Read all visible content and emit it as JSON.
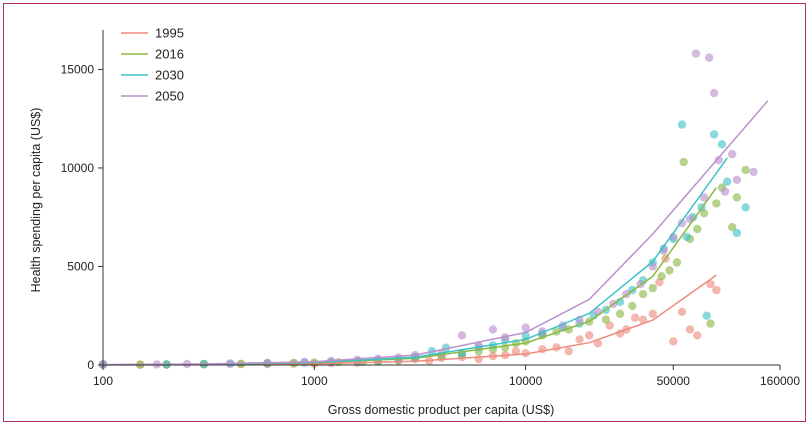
{
  "chart_data": {
    "type": "scatter",
    "title": "",
    "xlabel": "Gross domestic product per capita (US$)",
    "ylabel": "Health spending per capita (US$)",
    "x_scale": "log",
    "xlim": [
      100,
      160000
    ],
    "ylim": [
      0,
      17000
    ],
    "x_ticks": [
      {
        "value": 100,
        "label": "100"
      },
      {
        "value": 1000,
        "label": "1000"
      },
      {
        "value": 10000,
        "label": "10000"
      },
      {
        "value": 50000,
        "label": "50000"
      },
      {
        "value": 160000,
        "label": "160000"
      }
    ],
    "y_ticks": [
      {
        "value": 0,
        "label": "0"
      },
      {
        "value": 5000,
        "label": "5000"
      },
      {
        "value": 10000,
        "label": "10000"
      },
      {
        "value": 15000,
        "label": "15000"
      }
    ],
    "grid": false,
    "legend_position": "top-left",
    "series": [
      {
        "name": "1995",
        "color": "#ee8a7e",
        "line": [
          [
            100,
            5
          ],
          [
            300,
            20
          ],
          [
            1000,
            60
          ],
          [
            3000,
            190
          ],
          [
            10000,
            560
          ],
          [
            20000,
            1130
          ],
          [
            40000,
            2280
          ],
          [
            80000,
            4560
          ]
        ],
        "points": [
          [
            100,
            20
          ],
          [
            150,
            10
          ],
          [
            200,
            15
          ],
          [
            300,
            30
          ],
          [
            450,
            40
          ],
          [
            600,
            50
          ],
          [
            800,
            70
          ],
          [
            1000,
            60
          ],
          [
            1200,
            90
          ],
          [
            1600,
            110
          ],
          [
            2000,
            170
          ],
          [
            2500,
            230
          ],
          [
            3000,
            300
          ],
          [
            3500,
            220
          ],
          [
            4000,
            360
          ],
          [
            5000,
            400
          ],
          [
            6000,
            300
          ],
          [
            7000,
            450
          ],
          [
            8000,
            500
          ],
          [
            9000,
            700
          ],
          [
            10000,
            600
          ],
          [
            12000,
            800
          ],
          [
            14000,
            900
          ],
          [
            16000,
            700
          ],
          [
            18000,
            1300
          ],
          [
            20000,
            1500
          ],
          [
            22000,
            1100
          ],
          [
            25000,
            2000
          ],
          [
            28000,
            1600
          ],
          [
            30000,
            1800
          ],
          [
            33000,
            2400
          ],
          [
            36000,
            2300
          ],
          [
            40000,
            2600
          ],
          [
            43000,
            4200
          ],
          [
            46000,
            5400
          ],
          [
            50000,
            1200
          ],
          [
            55000,
            2700
          ],
          [
            60000,
            1800
          ],
          [
            65000,
            1500
          ],
          [
            75000,
            4100
          ],
          [
            80000,
            3800
          ]
        ]
      },
      {
        "name": "2016",
        "color": "#8ab843",
        "line": [
          [
            100,
            10
          ],
          [
            300,
            35
          ],
          [
            1000,
            110
          ],
          [
            3000,
            340
          ],
          [
            10000,
            1110
          ],
          [
            20000,
            2220
          ],
          [
            40000,
            4500
          ],
          [
            80000,
            9000
          ]
        ],
        "points": [
          [
            100,
            30
          ],
          [
            150,
            20
          ],
          [
            200,
            25
          ],
          [
            300,
            40
          ],
          [
            450,
            60
          ],
          [
            600,
            80
          ],
          [
            800,
            100
          ],
          [
            1000,
            120
          ],
          [
            1300,
            140
          ],
          [
            1700,
            150
          ],
          [
            2000,
            190
          ],
          [
            2500,
            250
          ],
          [
            3000,
            380
          ],
          [
            4000,
            450
          ],
          [
            5000,
            550
          ],
          [
            6000,
            700
          ],
          [
            7000,
            800
          ],
          [
            8000,
            900
          ],
          [
            9000,
            1100
          ],
          [
            10000,
            1200
          ],
          [
            12000,
            1500
          ],
          [
            14000,
            1700
          ],
          [
            16000,
            1800
          ],
          [
            20000,
            2200
          ],
          [
            24000,
            2300
          ],
          [
            28000,
            2600
          ],
          [
            32000,
            3000
          ],
          [
            36000,
            3600
          ],
          [
            40000,
            3900
          ],
          [
            44000,
            4500
          ],
          [
            48000,
            4800
          ],
          [
            52000,
            5200
          ],
          [
            56000,
            10300
          ],
          [
            60000,
            6400
          ],
          [
            65000,
            6900
          ],
          [
            70000,
            7700
          ],
          [
            75000,
            2100
          ],
          [
            80000,
            8200
          ],
          [
            85000,
            9000
          ],
          [
            95000,
            7000
          ],
          [
            100000,
            8500
          ],
          [
            110000,
            9900
          ]
        ]
      },
      {
        "name": "2030",
        "color": "#3cc1c6",
        "line": [
          [
            100,
            12
          ],
          [
            300,
            40
          ],
          [
            1000,
            130
          ],
          [
            3000,
            390
          ],
          [
            10000,
            1300
          ],
          [
            20000,
            2620
          ],
          [
            40000,
            5250
          ],
          [
            90000,
            10500
          ]
        ],
        "points": [
          [
            100,
            20
          ],
          [
            200,
            30
          ],
          [
            300,
            50
          ],
          [
            400,
            70
          ],
          [
            600,
            90
          ],
          [
            900,
            120
          ],
          [
            1200,
            160
          ],
          [
            1600,
            200
          ],
          [
            2000,
            250
          ],
          [
            2500,
            300
          ],
          [
            3000,
            400
          ],
          [
            3600,
            700
          ],
          [
            4200,
            880
          ],
          [
            5000,
            600
          ],
          [
            6000,
            900
          ],
          [
            7000,
            1000
          ],
          [
            8000,
            1300
          ],
          [
            10000,
            1500
          ],
          [
            12000,
            1600
          ],
          [
            15000,
            1900
          ],
          [
            18000,
            2100
          ],
          [
            21000,
            2500
          ],
          [
            24000,
            2800
          ],
          [
            28000,
            3200
          ],
          [
            32000,
            3800
          ],
          [
            36000,
            4300
          ],
          [
            40000,
            5200
          ],
          [
            45000,
            5900
          ],
          [
            50000,
            6400
          ],
          [
            55000,
            12200
          ],
          [
            58000,
            6500
          ],
          [
            62000,
            7500
          ],
          [
            68000,
            8000
          ],
          [
            72000,
            2500
          ],
          [
            78000,
            11700
          ],
          [
            85000,
            11200
          ],
          [
            90000,
            9300
          ],
          [
            100000,
            6700
          ],
          [
            110000,
            8000
          ]
        ]
      },
      {
        "name": "2050",
        "color": "#b990cc",
        "line": [
          [
            100,
            15
          ],
          [
            300,
            50
          ],
          [
            1000,
            165
          ],
          [
            3000,
            500
          ],
          [
            10000,
            1650
          ],
          [
            20000,
            3330
          ],
          [
            40000,
            6650
          ],
          [
            140000,
            13400
          ]
        ],
        "points": [
          [
            100,
            40
          ],
          [
            180,
            30
          ],
          [
            250,
            50
          ],
          [
            400,
            70
          ],
          [
            600,
            100
          ],
          [
            900,
            150
          ],
          [
            1200,
            200
          ],
          [
            1600,
            260
          ],
          [
            2000,
            320
          ],
          [
            2500,
            380
          ],
          [
            3000,
            500
          ],
          [
            4000,
            600
          ],
          [
            5000,
            1500
          ],
          [
            6000,
            1000
          ],
          [
            7000,
            1800
          ],
          [
            8000,
            1400
          ],
          [
            10000,
            1900
          ],
          [
            12000,
            1700
          ],
          [
            15000,
            2000
          ],
          [
            18000,
            2300
          ],
          [
            22000,
            2700
          ],
          [
            26000,
            3100
          ],
          [
            30000,
            3600
          ],
          [
            35000,
            4100
          ],
          [
            40000,
            5000
          ],
          [
            45000,
            5800
          ],
          [
            50000,
            6500
          ],
          [
            55000,
            7200
          ],
          [
            60000,
            7400
          ],
          [
            64000,
            15800
          ],
          [
            70000,
            8500
          ],
          [
            74000,
            15600
          ],
          [
            78000,
            13800
          ],
          [
            82000,
            10400
          ],
          [
            88000,
            8800
          ],
          [
            95000,
            10700
          ],
          [
            100000,
            9400
          ],
          [
            120000,
            9800
          ]
        ]
      }
    ]
  }
}
